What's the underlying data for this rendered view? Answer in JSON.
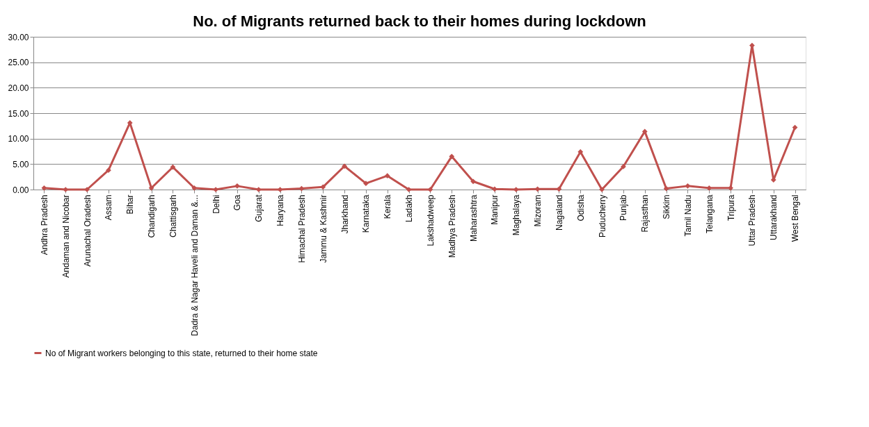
{
  "chart_data": {
    "type": "line",
    "title": "No. of Migrants returned back to their homes during lockdown",
    "categories": [
      "Andhra Pradesh",
      "Andaman and Nicobar",
      "Arunachal Oradesh",
      "Assam",
      "Bihar",
      "Chandigarh",
      "Chattisgarh",
      "Dadra & Nagar Haveli and Daman &...",
      "Delhi",
      "Goa",
      "Gujarat",
      "Haryana",
      "Himachal Pradesh",
      "Jammu & Kashmir",
      "Jharkhand",
      "Karnataka",
      "Kerala",
      "Ladakh",
      "Lakshadweep",
      "Madhya Pradesh",
      "Maharashtra",
      "Manipur",
      "Maghalaya",
      "Mizoram",
      "Nagaland",
      "Odisha",
      "Puducherry",
      "Punjab",
      "Rajasthan",
      "Sikkim",
      "Tamil Nadu",
      "Telangana",
      "Tripura",
      "Uttar Pradesh",
      "Uttarakhand",
      "West Bengal"
    ],
    "series": [
      {
        "name": "No of Migrant workers belonging to this state, returned to their home state",
        "color": "#c0504d",
        "values": [
          0.3,
          0,
          0,
          3.8,
          13.1,
          0.3,
          4.4,
          0.3,
          0,
          0.7,
          0,
          0,
          0.2,
          0.5,
          4.6,
          1.2,
          2.7,
          0,
          0,
          6.5,
          1.6,
          0.1,
          0,
          0.1,
          0.1,
          7.4,
          0,
          4.5,
          11.4,
          0.2,
          0.7,
          0.3,
          0.3,
          28.3,
          1.9,
          12.2
        ]
      }
    ],
    "ylim": [
      0,
      30
    ],
    "yticks": [
      {
        "value": 0,
        "label": "0.00"
      },
      {
        "value": 5,
        "label": "5.00"
      },
      {
        "value": 10,
        "label": "10.00"
      },
      {
        "value": 15,
        "label": "15.00"
      },
      {
        "value": 20,
        "label": "20.00"
      },
      {
        "value": 25,
        "label": "25.00"
      },
      {
        "value": 30,
        "label": "30.00"
      }
    ],
    "grid": "y",
    "legend": "bottom",
    "marker": "diamond",
    "line_style": "solid"
  }
}
